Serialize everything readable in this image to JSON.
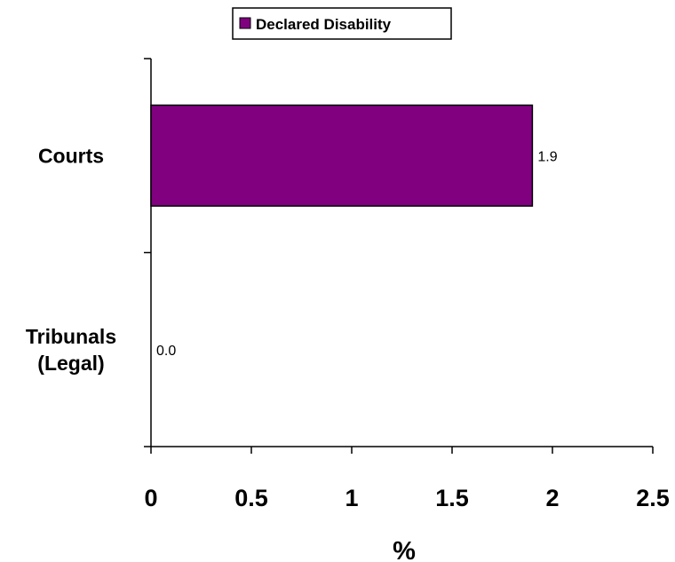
{
  "chart_data": {
    "type": "bar",
    "orientation": "horizontal",
    "categories": [
      "Courts",
      "Tribunals (Legal)"
    ],
    "category_lines": [
      [
        "Courts"
      ],
      [
        "Tribunals",
        "(Legal)"
      ]
    ],
    "series": [
      {
        "name": "Declared Disability",
        "values": [
          1.9,
          0.0
        ],
        "data_labels": [
          "1.9",
          "0.0"
        ],
        "color": "#800080"
      }
    ],
    "xlabel": "%",
    "ylabel": "",
    "xlim": [
      0,
      2.5
    ],
    "x_ticks": [
      0,
      0.5,
      1,
      1.5,
      2,
      2.5
    ],
    "x_tick_labels": [
      "0",
      "0.5",
      "1",
      "1.5",
      "2",
      "2.5"
    ],
    "grid": false,
    "legend_position": "top-center"
  }
}
